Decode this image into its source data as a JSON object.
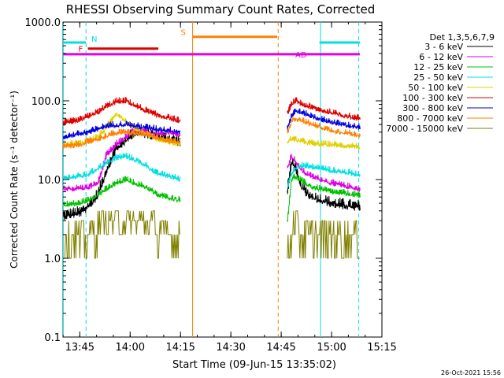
{
  "chart_data": {
    "type": "line",
    "title": "RHESSI Observing Summary Count Rates, Corrected",
    "xlabel": "Start Time (09-Jun-15 13:35:02)",
    "ylabel": "Corrected Count Rate (s⁻¹ detector⁻¹)",
    "yscale": "log",
    "xlim": [
      13.6667,
      15.25
    ],
    "ylim": [
      0.1,
      1000
    ],
    "x_ticks": [
      {
        "v": 13.75,
        "label": "13:45"
      },
      {
        "v": 14.0,
        "label": "14:00"
      },
      {
        "v": 14.25,
        "label": "14:15"
      },
      {
        "v": 14.5,
        "label": "14:30"
      },
      {
        "v": 14.75,
        "label": "14:45"
      },
      {
        "v": 15.0,
        "label": "15:00"
      },
      {
        "v": 15.25,
        "label": "15:15"
      }
    ],
    "y_ticks": [
      {
        "v": 1000,
        "label": "1000.0"
      },
      {
        "v": 100,
        "label": "100.0"
      },
      {
        "v": 10,
        "label": "10.0"
      },
      {
        "v": 1,
        "label": "1.0"
      },
      {
        "v": 0.1,
        "label": "0.1"
      }
    ],
    "legend_title": "Det 1,3,5,6,7,9",
    "series": [
      {
        "name": "3 - 6 keV",
        "color": "#000000",
        "seg1": {
          "x": [
            13.668,
            13.75,
            13.79,
            13.84,
            13.88,
            13.93,
            13.98,
            14.02,
            14.08,
            14.13,
            14.2,
            14.25
          ],
          "y": [
            3.5,
            3.8,
            4.5,
            6.5,
            13,
            25,
            32,
            40,
            38,
            36,
            33,
            30
          ]
        },
        "seg2": {
          "x": [
            14.78,
            14.8,
            14.82,
            14.84,
            14.87,
            14.9,
            14.95,
            15.0,
            15.05,
            15.1,
            15.14
          ],
          "y": [
            7,
            17,
            14,
            9,
            7,
            6,
            5.5,
            5,
            4.8,
            4.6,
            4.5
          ]
        }
      },
      {
        "name": "6 - 12 keV",
        "color": "#e000e0",
        "seg1": {
          "x": [
            13.668,
            13.75,
            13.79,
            13.84,
            13.88,
            13.93,
            13.98,
            14.02,
            14.08,
            14.13,
            14.2,
            14.25
          ],
          "y": [
            7.5,
            7.8,
            8,
            9,
            20,
            28,
            35,
            42,
            40,
            38,
            40,
            36
          ]
        },
        "seg2": {
          "x": [
            14.78,
            14.8,
            14.82,
            14.84,
            14.87,
            14.9,
            14.95,
            15.0,
            15.05,
            15.1,
            15.14
          ],
          "y": [
            14,
            20,
            17,
            14,
            12,
            11,
            10,
            9,
            8.5,
            8,
            7.5
          ]
        }
      },
      {
        "name": "12 - 25 keV",
        "color": "#00c000",
        "seg1": {
          "x": [
            13.668,
            13.75,
            13.79,
            13.84,
            13.88,
            13.93,
            13.98,
            14.02,
            14.08,
            14.13,
            14.2,
            14.25
          ],
          "y": [
            4.8,
            5.0,
            5.5,
            6.5,
            7.5,
            9,
            10,
            9,
            8,
            6.5,
            5.8,
            5.5
          ]
        },
        "seg2": {
          "x": [
            14.78,
            14.8,
            14.82,
            14.84,
            14.87,
            14.9,
            14.95,
            15.0,
            15.05,
            15.1,
            15.14
          ],
          "y": [
            3,
            10,
            11,
            10,
            9,
            8,
            7.5,
            7,
            6.8,
            6.5,
            6.3
          ]
        }
      },
      {
        "name": "25 - 50 keV",
        "color": "#00e0e0",
        "seg1": {
          "x": [
            13.668,
            13.75,
            13.79,
            13.84,
            13.88,
            13.93,
            13.98,
            14.02,
            14.08,
            14.13,
            14.2,
            14.25
          ],
          "y": [
            10.5,
            11,
            11.5,
            14,
            16,
            19,
            20,
            18,
            15,
            12,
            11,
            10
          ]
        },
        "seg2": {
          "x": [
            14.78,
            14.8,
            14.82,
            14.84,
            14.87,
            14.9,
            14.95,
            15.0,
            15.05,
            15.1,
            15.14
          ],
          "y": [
            8,
            12,
            14,
            15,
            15,
            14.5,
            14,
            13,
            12.5,
            12,
            11.5
          ]
        }
      },
      {
        "name": "50 - 100 keV",
        "color": "#e0d000",
        "seg1": {
          "x": [
            13.668,
            13.75,
            13.79,
            13.84,
            13.88,
            13.93,
            13.98,
            14.02,
            14.08,
            14.13,
            14.2,
            14.25
          ],
          "y": [
            28,
            29,
            31,
            35,
            45,
            70,
            55,
            45,
            38,
            33,
            30,
            28
          ]
        },
        "seg2": {
          "x": [
            14.78,
            14.8,
            14.82,
            14.84,
            14.87,
            14.9,
            14.95,
            15.0,
            15.05,
            15.1,
            15.14
          ],
          "y": [
            30,
            33,
            32,
            31,
            30,
            29,
            28,
            28,
            27,
            27,
            26
          ]
        }
      },
      {
        "name": "100 - 300 keV",
        "color": "#e00000",
        "seg1": {
          "x": [
            13.668,
            13.75,
            13.79,
            13.84,
            13.88,
            13.93,
            13.98,
            14.02,
            14.08,
            14.13,
            14.2,
            14.25
          ],
          "y": [
            52,
            57,
            63,
            72,
            85,
            98,
            100,
            88,
            75,
            66,
            60,
            55
          ]
        },
        "seg2": {
          "x": [
            14.78,
            14.8,
            14.82,
            14.84,
            14.87,
            14.9,
            14.95,
            15.0,
            15.05,
            15.1,
            15.14
          ],
          "y": [
            70,
            90,
            100,
            95,
            88,
            82,
            76,
            70,
            66,
            62,
            60
          ]
        }
      },
      {
        "name": "300 - 800 keV",
        "color": "#0000e0",
        "seg1": {
          "x": [
            13.668,
            13.75,
            13.79,
            13.84,
            13.88,
            13.93,
            13.98,
            14.02,
            14.08,
            14.13,
            14.2,
            14.25
          ],
          "y": [
            35,
            38,
            40,
            44,
            48,
            50,
            50,
            48,
            46,
            44,
            42,
            40
          ]
        },
        "seg2": {
          "x": [
            14.78,
            14.8,
            14.82,
            14.84,
            14.87,
            14.9,
            14.95,
            15.0,
            15.05,
            15.1,
            15.14
          ],
          "y": [
            45,
            65,
            75,
            72,
            68,
            64,
            58,
            54,
            50,
            48,
            46
          ]
        }
      },
      {
        "name": "800 - 7000 keV",
        "color": "#ff8000",
        "seg1": {
          "x": [
            13.668,
            13.75,
            13.79,
            13.84,
            13.88,
            13.93,
            13.98,
            14.02,
            14.08,
            14.13,
            14.2,
            14.25
          ],
          "y": [
            26,
            28,
            30,
            33,
            36,
            39,
            40,
            39,
            37,
            34,
            31,
            30
          ]
        },
        "seg2": {
          "x": [
            14.78,
            14.8,
            14.82,
            14.84,
            14.87,
            14.9,
            14.95,
            15.0,
            15.05,
            15.1,
            15.14
          ],
          "y": [
            40,
            55,
            60,
            58,
            54,
            50,
            46,
            42,
            40,
            38,
            36
          ]
        }
      },
      {
        "name": "7000 - 15000 keV",
        "color": "#808000",
        "seg1": {
          "x": [
            13.668,
            13.75,
            13.79,
            13.84,
            13.88,
            13.93,
            13.98,
            14.02,
            14.08,
            14.13,
            14.2,
            14.25
          ],
          "y": [
            1.5,
            1.8,
            2.0,
            2.5,
            3.0,
            3.2,
            3.5,
            3.2,
            2.8,
            2.5,
            2.2,
            1.5
          ]
        },
        "seg2": {
          "x": [
            14.78,
            14.8,
            14.82,
            14.84,
            14.87,
            14.9,
            14.95,
            15.0,
            15.05,
            15.1,
            15.14
          ],
          "y": [
            0.7,
            2.5,
            3.0,
            2.5,
            2.0,
            1.8,
            1.5,
            1.5,
            1.5,
            1.5,
            1.5
          ]
        }
      }
    ],
    "markers": [
      {
        "label": "N",
        "color": "#00e0e0",
        "y": 550,
        "segments": [
          [
            13.668,
            13.78
          ],
          [
            14.94,
            15.14
          ]
        ]
      },
      {
        "label": "F",
        "color": "#e00000",
        "y": 460,
        "segments": [
          [
            13.79,
            14.14
          ]
        ]
      },
      {
        "label": "S",
        "color": "#ff8000",
        "y": 650,
        "segments": [
          [
            14.31,
            14.73
          ]
        ]
      },
      {
        "label": "AD",
        "color": "#e000e0",
        "y": 390,
        "segments": [
          [
            13.668,
            15.14
          ]
        ]
      }
    ],
    "vlines": [
      {
        "x": 13.668,
        "color": "#00e0e0",
        "dashed": false
      },
      {
        "x": 13.781,
        "color": "#00e0e0",
        "dashed": true
      },
      {
        "x": 14.31,
        "color": "#ff8000",
        "dashed": false
      },
      {
        "x": 14.735,
        "color": "#ff8000",
        "dashed": true
      },
      {
        "x": 14.945,
        "color": "#00e0e0",
        "dashed": false
      },
      {
        "x": 15.135,
        "color": "#00e0e0",
        "dashed": true
      }
    ]
  },
  "footer": {
    "timestamp": "26-Oct-2021 15:56"
  }
}
